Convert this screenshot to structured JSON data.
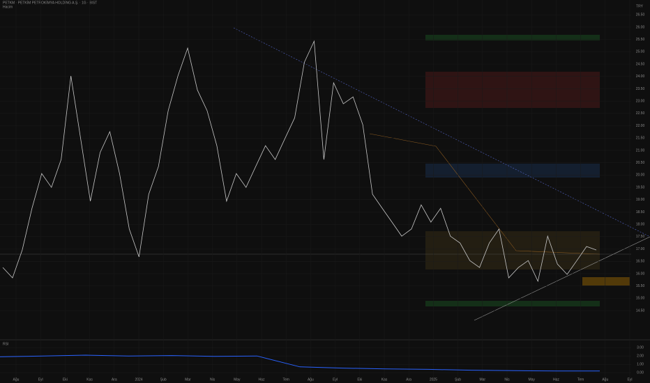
{
  "chart_data": {
    "type": "line",
    "title": "PETKM · PETKİM PETROKİMYA HOLDİNG A.Ş. · 1G · BIST",
    "subtitle": "Hacim",
    "color": "#c8c8c8",
    "values": [
      16.25,
      15.83,
      16.96,
      18.65,
      20.06,
      19.5,
      20.63,
      24.02,
      21.48,
      18.94,
      20.91,
      21.76,
      20.06,
      17.81,
      16.68,
      19.22,
      20.35,
      22.61,
      24.02,
      25.15,
      23.45,
      22.61,
      21.19,
      18.94,
      20.06,
      19.5,
      20.35,
      21.19,
      20.63,
      21.48,
      22.32,
      24.58,
      25.43,
      20.63,
      23.74,
      22.89,
      23.17,
      22.04,
      19.22,
      18.65,
      18.09,
      17.52,
      17.81,
      18.79,
      18.09,
      18.65,
      17.52,
      17.24,
      16.53,
      16.25,
      17.24,
      17.81,
      15.83,
      16.25,
      16.53,
      15.69,
      17.52,
      16.39,
      15.97,
      16.53,
      17.1,
      16.96
    ],
    "ylim": [
      13.4,
      27.1
    ],
    "yticks": [
      {
        "value": 14.5,
        "label": "14.50"
      },
      {
        "value": 15,
        "label": "15.00"
      },
      {
        "value": 15.5,
        "label": "15.50"
      },
      {
        "value": 16,
        "label": "16.00"
      },
      {
        "value": 16.5,
        "label": "16.50"
      },
      {
        "value": 17,
        "label": "17.00"
      },
      {
        "value": 17.5,
        "label": "17.50"
      },
      {
        "value": 18,
        "label": "18.00"
      },
      {
        "value": 18.5,
        "label": "18.50"
      },
      {
        "value": 19,
        "label": "19.00"
      },
      {
        "value": 19.5,
        "label": "19.50"
      },
      {
        "value": 20,
        "label": "20.00"
      },
      {
        "value": 20.5,
        "label": "20.50"
      },
      {
        "value": 21,
        "label": "21.00"
      },
      {
        "value": 21.5,
        "label": "21.50"
      },
      {
        "value": 22,
        "label": "22.00"
      },
      {
        "value": 22.5,
        "label": "22.50"
      },
      {
        "value": 23,
        "label": "23.00"
      },
      {
        "value": 23.5,
        "label": "23.50"
      },
      {
        "value": 24,
        "label": "24.00"
      },
      {
        "value": 24.5,
        "label": "24.50"
      },
      {
        "value": 25,
        "label": "25.00"
      },
      {
        "value": 25.5,
        "label": "25.50"
      },
      {
        "value": 26,
        "label": "26.00"
      },
      {
        "value": 26.5,
        "label": "26.50"
      }
    ],
    "time_labels": [
      "Ağu",
      "Eyl",
      "Eki",
      "Kas",
      "Ara",
      "2024",
      "Şub",
      "Mar",
      "Nis",
      "May",
      "Haz",
      "Tem",
      "Ağu",
      "Eyl",
      "Eki",
      "Kas",
      "Ara",
      "2025",
      "Şub",
      "Mar",
      "Nis",
      "May",
      "Haz",
      "Tem",
      "Ağu",
      "Eyl"
    ],
    "currency": "TRY",
    "indicator": {
      "name": "RSI",
      "color": "#2962ff",
      "values": [
        1.9,
        2.0,
        2.1,
        2.0,
        2.05,
        1.95,
        2.0,
        0.7,
        0.55,
        0.45,
        0.4,
        0.3,
        0.25,
        0.2,
        0.2
      ],
      "ylim": [
        -0.4,
        3.6
      ],
      "yticks": [
        {
          "value": 3,
          "label": "3.00"
        },
        {
          "value": 2,
          "label": "2.00"
        },
        {
          "value": 1,
          "label": "1.00"
        },
        {
          "value": 0,
          "label": "0.00"
        }
      ]
    }
  }
}
